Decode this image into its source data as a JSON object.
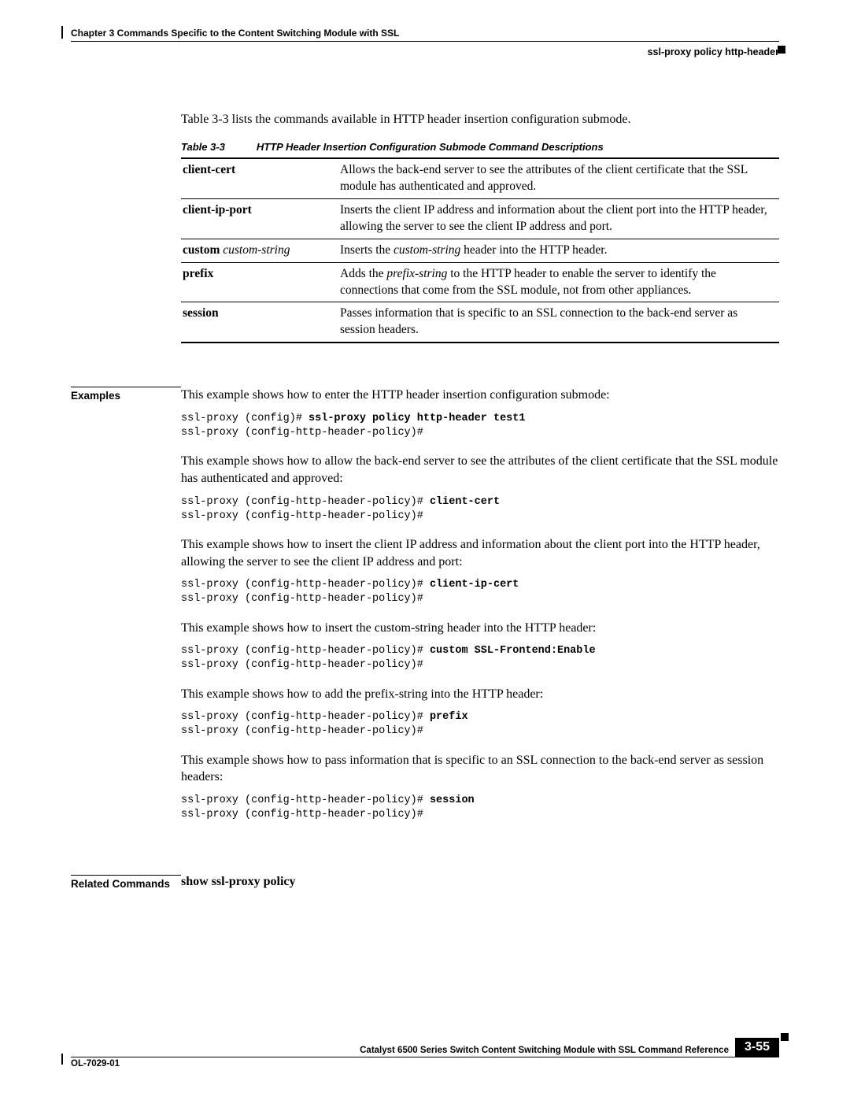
{
  "header": {
    "chapter": "Chapter 3      Commands Specific to the Content Switching Module with SSL",
    "subject": "ssl-proxy policy http-header"
  },
  "intro": "Table 3-3 lists the commands available in HTTP header insertion configuration submode.",
  "table": {
    "caption_num": "Table 3-3",
    "caption_text": "HTTP Header Insertion Configuration Submode Command Descriptions",
    "rows": [
      {
        "cmd": "client-cert",
        "cmd_bold": true,
        "desc_pre": "Allows the back-end server to see the attributes of the client certificate that the SSL module has authenticated and approved."
      },
      {
        "cmd": "client-ip-port",
        "cmd_bold": true,
        "desc_pre": "Inserts the client IP address and information about the client port into the HTTP header, allowing the server to see the client IP address and port."
      },
      {
        "cmd_bold_part": "custom",
        "cmd_ital_part": "custom-string",
        "desc_pre": "Inserts the ",
        "desc_ital": "custom-string",
        "desc_post": " header into the HTTP header."
      },
      {
        "cmd": "prefix",
        "cmd_bold": true,
        "desc_pre": "Adds the ",
        "desc_ital": "prefix-string",
        "desc_post": " to the HTTP header to enable the server to identify the connections that come from the SSL module, not from other appliances."
      },
      {
        "cmd": "session",
        "cmd_bold": true,
        "desc_pre": "Passes information that is specific to an SSL connection to the back-end server as session headers."
      }
    ]
  },
  "examples": {
    "label": "Examples",
    "items": [
      {
        "text": "This example shows how to enter the HTTP header insertion configuration submode:",
        "code_pre": "ssl-proxy (config)# ",
        "code_bold": "ssl-proxy policy http-header test1",
        "code_line2": "ssl-proxy (config-http-header-policy)#"
      },
      {
        "text": "This example shows how to allow the back-end server to see the attributes of the client certificate that the SSL module has authenticated and approved:",
        "code_pre": "ssl-proxy (config-http-header-policy)# ",
        "code_bold": "client-cert",
        "code_line2": "ssl-proxy (config-http-header-policy)#"
      },
      {
        "text": "This example shows how to insert the client IP address and information about the client port into the HTTP header, allowing the server to see the client IP address and port:",
        "code_pre": "ssl-proxy (config-http-header-policy)# ",
        "code_bold": "client-ip-cert",
        "code_line2": "ssl-proxy (config-http-header-policy)#"
      },
      {
        "text": "This example shows how to insert the custom-string header into the HTTP header:",
        "code_pre": "ssl-proxy (config-http-header-policy)# ",
        "code_bold": "custom SSL-Frontend:Enable",
        "code_line2": "ssl-proxy (config-http-header-policy)#"
      },
      {
        "text": "This example shows how to add the prefix-string into the HTTP header:",
        "code_pre": "ssl-proxy (config-http-header-policy)# ",
        "code_bold": "prefix",
        "code_line2": "ssl-proxy (config-http-header-policy)#"
      },
      {
        "text": "This example shows how to pass information that is specific to an SSL connection to the back-end server as session headers:",
        "code_pre": "ssl-proxy (config-http-header-policy)# ",
        "code_bold": "session",
        "code_line2": "ssl-proxy (config-http-header-policy)#"
      }
    ]
  },
  "related": {
    "label": "Related Commands",
    "value": "show ssl-proxy policy"
  },
  "footer": {
    "title": "Catalyst 6500 Series Switch Content Switching Module with SSL Command Reference",
    "doc": "OL-7029-01",
    "page": "3-55"
  }
}
